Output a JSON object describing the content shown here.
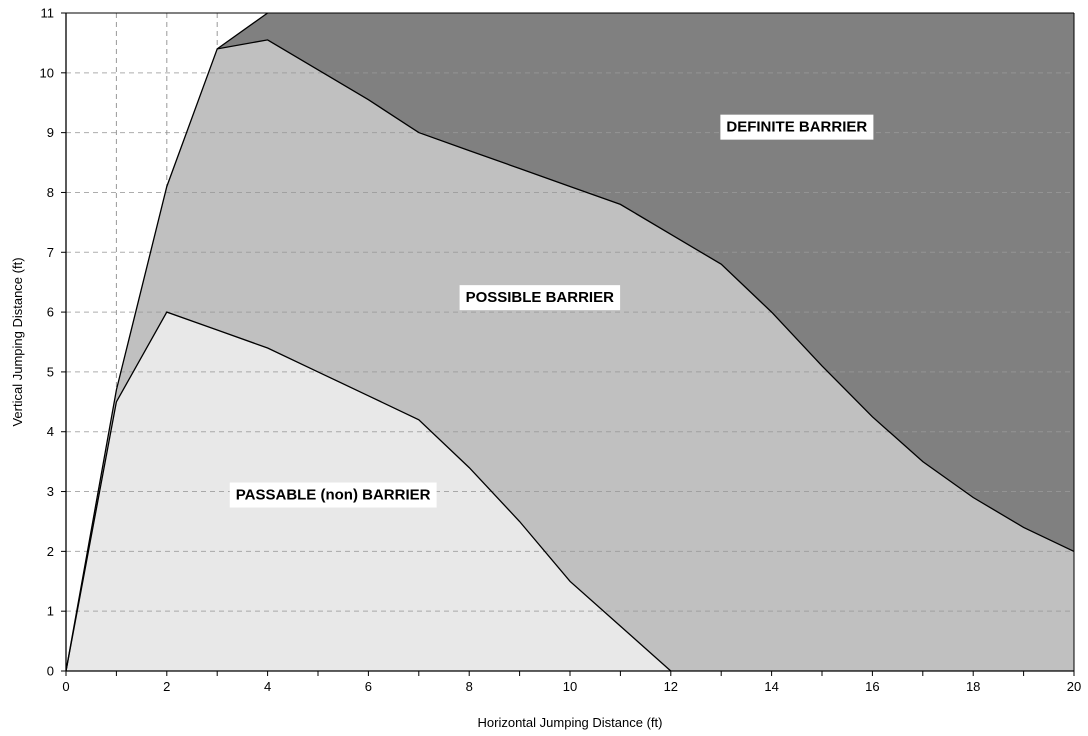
{
  "chart_data": {
    "type": "area",
    "xlabel": "Horizontal Jumping Distance (ft)",
    "ylabel": "Vertical Jumping Distance (ft)",
    "xlim": [
      0,
      20
    ],
    "ylim": [
      0,
      11
    ],
    "x_ticks": [
      0,
      2,
      4,
      6,
      8,
      10,
      12,
      14,
      16,
      18,
      20
    ],
    "y_ticks": [
      0,
      1,
      2,
      3,
      4,
      5,
      6,
      7,
      8,
      9,
      10,
      11
    ],
    "grid": {
      "style": "dashed",
      "x_lines_at": [
        1,
        2,
        3
      ],
      "y_lines_at": [
        1,
        2,
        3,
        4,
        5,
        6,
        7,
        8,
        9,
        10
      ]
    },
    "series": [
      {
        "name": "DEFINITE BARRIER",
        "color": "#808080",
        "x": [
          3,
          4
        ],
        "values": [
          10.4,
          11
        ]
      },
      {
        "name": "POSSIBLE BARRIER",
        "color": "#c0c0c0",
        "x": [
          0,
          1,
          2,
          3,
          4,
          5,
          6,
          7,
          8,
          9,
          10,
          11,
          12,
          13,
          14,
          15,
          16,
          17,
          18,
          19,
          20
        ],
        "values": [
          0,
          4.7,
          8.1,
          10.4,
          10.55,
          10.05,
          9.55,
          9.0,
          8.7,
          8.4,
          8.1,
          7.8,
          7.3,
          6.8,
          6.0,
          5.1,
          4.25,
          3.5,
          2.9,
          2.4,
          2.0
        ]
      },
      {
        "name": "PASSABLE (non) BARRIER",
        "color": "#e8e8e8",
        "x": [
          0,
          1,
          2,
          3,
          4,
          5,
          6,
          7,
          8,
          9,
          10,
          11,
          12
        ],
        "values": [
          0,
          4.5,
          6.0,
          5.7,
          5.4,
          5.0,
          4.6,
          4.2,
          3.4,
          2.5,
          1.5,
          0.75,
          0
        ]
      }
    ],
    "annotations": [
      {
        "text": "DEFINITE BARRIER",
        "x": 14.5,
        "y": 9.1
      },
      {
        "text": "POSSIBLE BARRIER",
        "x": 9.4,
        "y": 6.25
      },
      {
        "text": "PASSABLE (non) BARRIER",
        "x": 5.3,
        "y": 2.95
      }
    ]
  }
}
